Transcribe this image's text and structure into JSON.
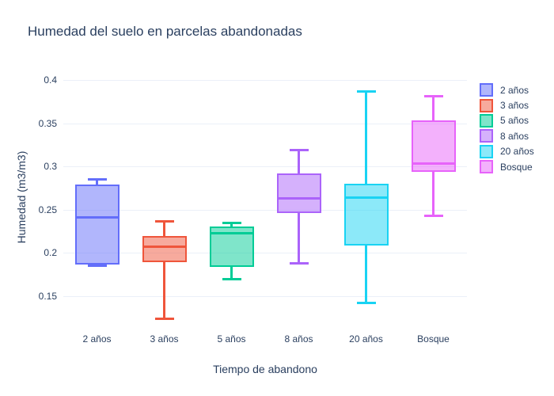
{
  "chart": {
    "title": "Humedad del suelo en parcelas abandonadas",
    "x_axis_title": "Tiempo de abandono",
    "y_axis_title": "Humedad (m3/m3)"
  },
  "chart_data": {
    "type": "box",
    "title": "Humedad del suelo en parcelas abandonadas",
    "xlabel": "Tiempo de abandono",
    "ylabel": "Humedad (m3/m3)",
    "categories": [
      "2 años",
      "3 años",
      "5 años",
      "8 años",
      "20 años",
      "Bosque"
    ],
    "series": [
      {
        "name": "2 años",
        "color": "#636EFA",
        "low": 0.185,
        "q1": 0.187,
        "median": 0.241,
        "q3": 0.279,
        "high": 0.285
      },
      {
        "name": "3 años",
        "color": "#EF553B",
        "low": 0.124,
        "q1": 0.189,
        "median": 0.207,
        "q3": 0.22,
        "high": 0.237
      },
      {
        "name": "5 años",
        "color": "#00CC96",
        "low": 0.17,
        "q1": 0.184,
        "median": 0.223,
        "q3": 0.231,
        "high": 0.235
      },
      {
        "name": "8 años",
        "color": "#AB63FA",
        "low": 0.188,
        "q1": 0.246,
        "median": 0.263,
        "q3": 0.292,
        "high": 0.319
      },
      {
        "name": "20 años",
        "color": "#19D3F3",
        "low": 0.142,
        "q1": 0.209,
        "median": 0.264,
        "q3": 0.28,
        "high": 0.387
      },
      {
        "name": "Bosque",
        "color": "#E763FA",
        "low": 0.243,
        "q1": 0.294,
        "median": 0.303,
        "q3": 0.353,
        "high": 0.381
      }
    ],
    "legend": [
      "2 años",
      "3 años",
      "5 años",
      "8 años",
      "20 años",
      "Bosque"
    ],
    "legend_position": "right",
    "yticks": [
      {
        "value": 0.15,
        "label": "0.15"
      },
      {
        "value": 0.2,
        "label": "0.2"
      },
      {
        "value": 0.25,
        "label": "0.25"
      },
      {
        "value": 0.3,
        "label": "0.3"
      },
      {
        "value": 0.35,
        "label": "0.35"
      },
      {
        "value": 0.4,
        "label": "0.4"
      }
    ],
    "ylim": [
      0.117,
      0.412
    ],
    "grid": true
  },
  "colors": {
    "text": "#2a3f5f",
    "grid": "#ebf0f8",
    "background": "#ffffff",
    "fill_opacity": 0.5
  }
}
